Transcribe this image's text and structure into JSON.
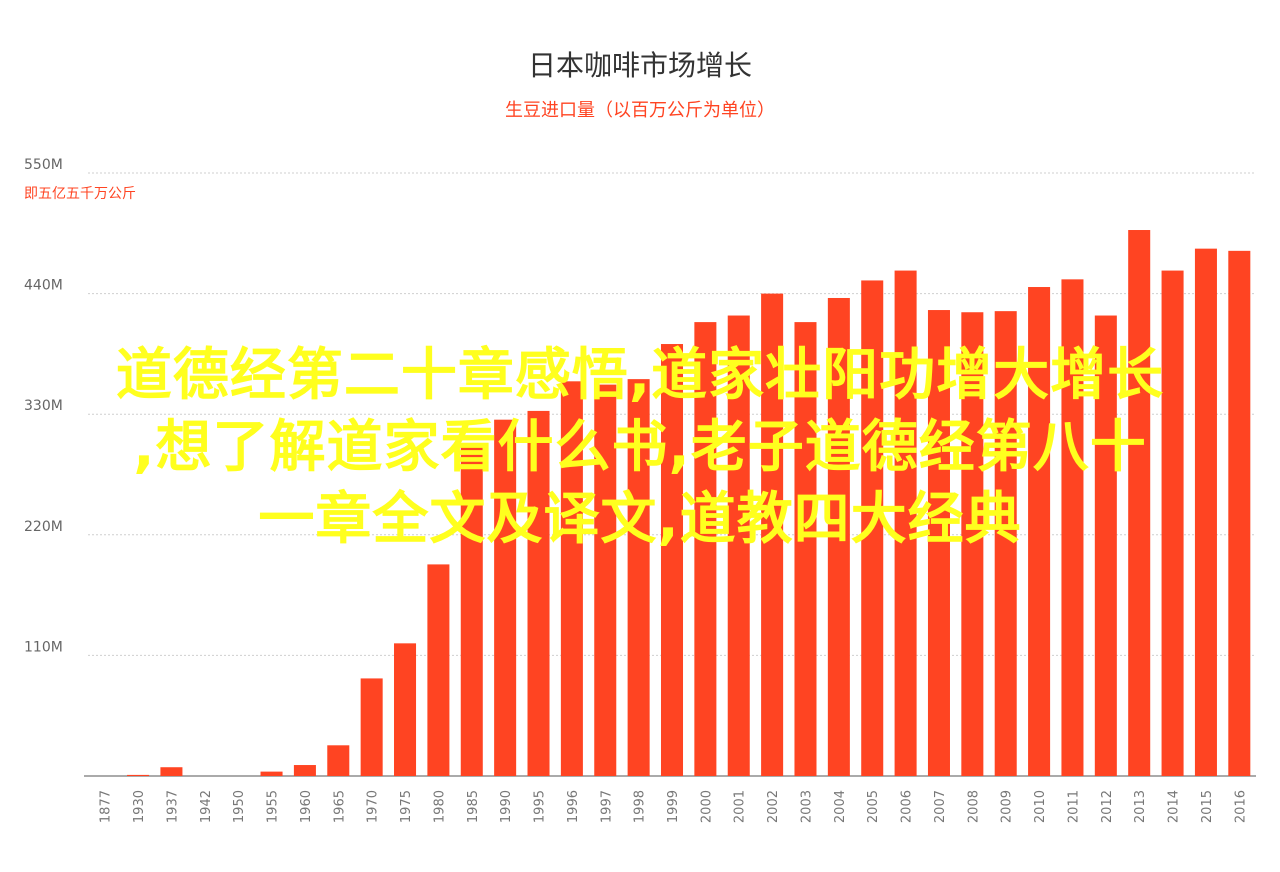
{
  "accent_color": "#ff4422",
  "chart_data": {
    "type": "bar",
    "title": "日本咖啡市场增长",
    "subtitle": "生豆进口量（以百万公斤为单位）",
    "yunit_note": "即五亿五千万公斤",
    "categories": [
      "1877",
      "1930",
      "1937",
      "1942",
      "1950",
      "1955",
      "1960",
      "1965",
      "1970",
      "1975",
      "1980",
      "1985",
      "1990",
      "1995",
      "1996",
      "1997",
      "1998",
      "1999",
      "2000",
      "2001",
      "2002",
      "2003",
      "2004",
      "2005",
      "2006",
      "2007",
      "2008",
      "2009",
      "2010",
      "2011",
      "2012",
      "2013",
      "2014",
      "2015",
      "2016"
    ],
    "values": [
      0,
      1,
      8,
      0,
      0,
      4,
      10,
      28,
      89,
      121,
      193,
      303,
      325,
      333,
      360,
      357,
      362,
      394,
      414,
      420,
      440,
      414,
      436,
      452,
      461,
      425,
      423,
      424,
      446,
      453,
      420,
      498,
      461,
      481,
      479
    ],
    "ylim": [
      0,
      550
    ],
    "yticks": [
      110,
      220,
      330,
      440,
      550
    ],
    "ytick_labels": [
      "110M",
      "220M",
      "330M",
      "440M",
      "550M"
    ],
    "grid": true,
    "xlabel": "",
    "ylabel": ""
  },
  "overlay": {
    "line1": "道德经第二十章感悟,道家壮阳功增大增长",
    "line2": ",想了解道家看什么书,老子道德经第八十",
    "line3": "一章全文及译文,道教四大经典"
  }
}
